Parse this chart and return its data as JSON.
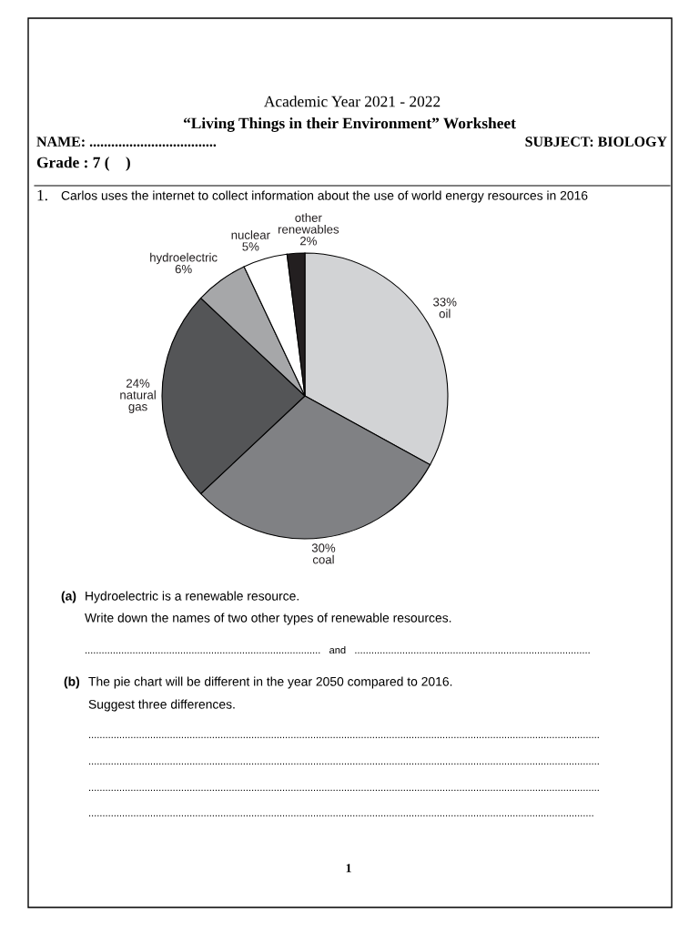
{
  "chart_data": {
    "type": "pie",
    "title": "Carlos uses the internet to collect information about the use of world energy resources in 2016",
    "categories": [
      "oil",
      "coal",
      "natural gas",
      "hydroelectric",
      "nuclear",
      "other renewables"
    ],
    "values": [
      33,
      30,
      24,
      6,
      5,
      2
    ],
    "value_labels": [
      "33%",
      "30%",
      "24%",
      "6%",
      "5%",
      "2%"
    ],
    "colors": [
      "#d2d3d5",
      "#808184",
      "#545557",
      "#a6a7a9",
      "#ffffff",
      "#231f20"
    ],
    "annotations": [
      "Academic Year 2021 - 2022",
      "“Living Things in their Environment” Worksheet",
      "NAME: ...................................",
      "SUBJECT: BIOLOGY",
      "Grade : 7 (    )",
      "1.",
      "(a)",
      "Hydroelectric is a renewable resource.",
      "Write down the names of two other types of renewable resources.",
      "....................................................................................   and   ....................................................................................",
      "(b)",
      "The pie chart will be different in the year 2050 compared to 2016.",
      "Suggest three differences.",
      "......................................................................................................................................................................................",
      "......................................................................................................................................................................................",
      "......................................................................................................................................................................................",
      "....................................................................................................................................................................................",
      "1"
    ]
  }
}
